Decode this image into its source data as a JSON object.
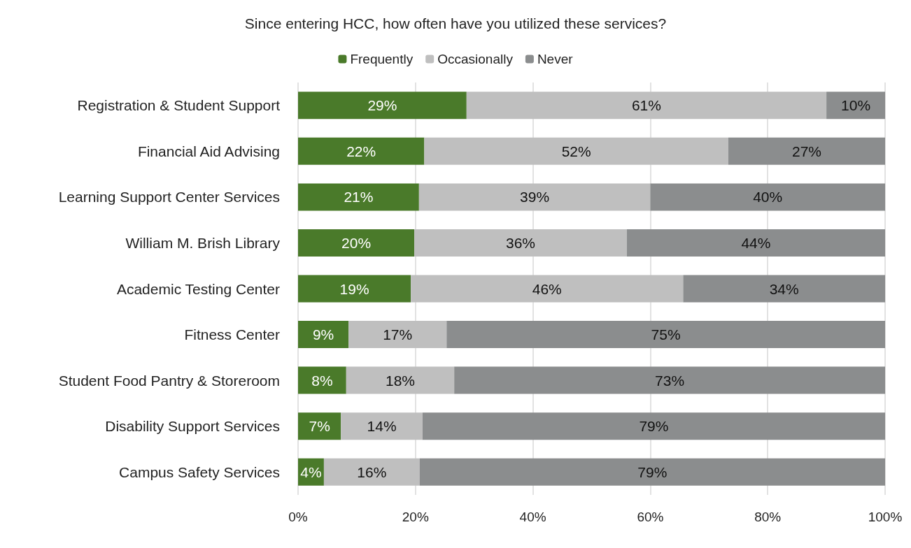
{
  "chart_data": {
    "type": "bar",
    "orientation": "horizontal",
    "stacked": true,
    "title": "Since entering HCC, how often have you utilized these services?",
    "categories": [
      "Registration & Student Support",
      "Financial Aid Advising",
      "Learning Support Center Services",
      "William M. Brish Library",
      "Academic Testing Center",
      "Fitness Center",
      "Student Food Pantry & Storeroom",
      "Disability Support Services",
      "Campus Safety Services"
    ],
    "series": [
      {
        "name": "Frequently",
        "color": "#4a7a2a",
        "values": [
          28.7,
          21.5,
          20.6,
          19.8,
          19.2,
          8.6,
          8.2,
          7.3,
          4.4
        ],
        "value_labels": [
          "29%",
          "22%",
          "21%",
          "20%",
          "19%",
          "9%",
          "8%",
          "7%",
          "4%"
        ]
      },
      {
        "name": "Occasionally",
        "color": "#bfbfbf",
        "values": [
          61.3,
          51.8,
          39.4,
          36.2,
          46.4,
          16.7,
          18.4,
          13.9,
          16.3
        ],
        "value_labels": [
          "61%",
          "52%",
          "39%",
          "36%",
          "46%",
          "17%",
          "18%",
          "14%",
          "16%"
        ]
      },
      {
        "name": "Never",
        "color": "#8b8d8e",
        "values": [
          10.0,
          26.7,
          40.0,
          44.0,
          34.4,
          74.7,
          73.4,
          78.8,
          79.3
        ],
        "value_labels": [
          "10%",
          "27%",
          "40%",
          "44%",
          "34%",
          "75%",
          "73%",
          "79%",
          "79%"
        ]
      }
    ],
    "xlim": [
      0,
      100
    ],
    "xticks": [
      {
        "value": 0,
        "label": "0%"
      },
      {
        "value": 20,
        "label": "20%"
      },
      {
        "value": 40,
        "label": "40%"
      },
      {
        "value": 60,
        "label": "60%"
      },
      {
        "value": 80,
        "label": "80%"
      },
      {
        "value": 100,
        "label": "100%"
      }
    ],
    "grid": "x",
    "legend": "top"
  }
}
